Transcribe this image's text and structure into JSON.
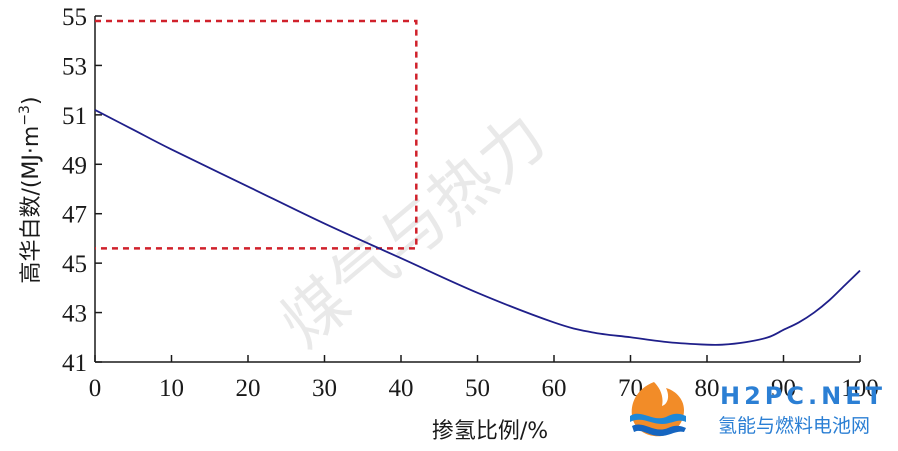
{
  "chart_data": {
    "type": "line",
    "title": "",
    "xlabel": "掺氢比例/%",
    "ylabel": "高华白数/(MJ·m",
    "ylabel_sup": "−3",
    "ylabel_close": ")",
    "xlim": [
      0,
      100
    ],
    "ylim": [
      41,
      55
    ],
    "x_ticks": [
      0,
      10,
      20,
      30,
      40,
      50,
      60,
      70,
      80,
      90,
      100
    ],
    "y_ticks": [
      41,
      43,
      45,
      47,
      49,
      51,
      53,
      55
    ],
    "grid": false,
    "series": [
      {
        "color": "#1f1f8a",
        "x": [
          0,
          5,
          10,
          20,
          30,
          40,
          50,
          60,
          65,
          70,
          75,
          80,
          82,
          85,
          88,
          90,
          92,
          94,
          96,
          98,
          100
        ],
        "y": [
          51.2,
          50.4,
          49.6,
          48.1,
          46.6,
          45.2,
          43.8,
          42.6,
          42.2,
          42.0,
          41.8,
          41.7,
          41.7,
          41.8,
          42.0,
          42.3,
          42.6,
          43.0,
          43.5,
          44.1,
          44.7
        ]
      }
    ],
    "annotations": [
      {
        "type": "dashed-rectangle",
        "x0": 0,
        "x1": 42,
        "y0": 45.6,
        "y1": 54.8,
        "color": "#d0212b"
      }
    ]
  },
  "watermark": {
    "text": "煤气与热力"
  },
  "logo": {
    "main": "H2PC.NET",
    "sub": "氢能与燃料电池网"
  }
}
